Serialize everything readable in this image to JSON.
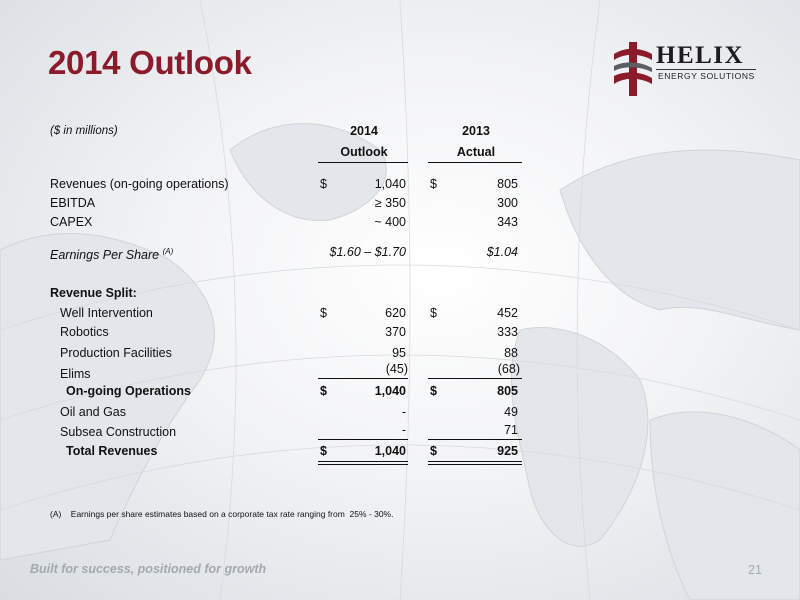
{
  "slide": {
    "title": "2014 Outlook",
    "units_note": "($ in millions)",
    "col_2014": {
      "year": "2014",
      "label": "Outlook"
    },
    "col_2013": {
      "year": "2013",
      "label": "Actual"
    },
    "footnote": "(A)    Earnings per share estimates based on a corporate tax rate ranging from  25% - 30%.",
    "tagline": "Built for success, positioned for growth",
    "page_number": "21"
  },
  "logo": {
    "name": "HELIX",
    "subtitle": "ENERGY SOLUTIONS"
  },
  "rows": {
    "revenues": {
      "label": "Revenues (on-going operations)",
      "cur": "$",
      "v2014": "1,040",
      "cur13": "$",
      "v2013": "805"
    },
    "ebitda": {
      "label": "EBITDA",
      "v2014": "≥ 350",
      "v2013": "300"
    },
    "capex": {
      "label": "CAPEX",
      "v2014": "~ 400",
      "v2013": "343"
    },
    "eps": {
      "label": "Earnings Per Share",
      "sup": "(A)",
      "v2014": "$1.60 – $1.70",
      "v2013": "$1.04"
    },
    "split_header": {
      "label": "Revenue Split:"
    },
    "well": {
      "label": "Well Intervention",
      "cur": "$",
      "v2014": "620",
      "cur13": "$",
      "v2013": "452"
    },
    "robotics": {
      "label": "Robotics",
      "v2014": "370",
      "v2013": "333"
    },
    "production": {
      "label": "Production Facilities",
      "v2014": "95",
      "v2013": "88"
    },
    "elims": {
      "label": "Elims",
      "v2014": "(45)",
      "v2013": "(68)"
    },
    "ongoing": {
      "label": "On-going Operations",
      "cur": "$",
      "v2014": "1,040",
      "cur13": "$",
      "v2013": "805"
    },
    "oilgas": {
      "label": "Oil and Gas",
      "v2014": "-",
      "v2013": "49"
    },
    "subsea": {
      "label": "Subsea Construction",
      "v2014": "-",
      "v2013": "71"
    },
    "total": {
      "label": "Total Revenues",
      "cur": "$",
      "v2014": "1,040",
      "cur13": "$",
      "v2013": "925"
    }
  },
  "colors": {
    "title": "#8b1a2b",
    "footer": "#a3a9b1"
  }
}
